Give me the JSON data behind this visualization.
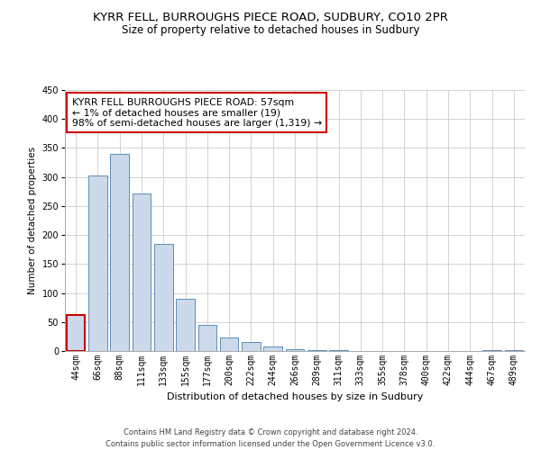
{
  "title": "KYRR FELL, BURROUGHS PIECE ROAD, SUDBURY, CO10 2PR",
  "subtitle": "Size of property relative to detached houses in Sudbury",
  "xlabel": "Distribution of detached houses by size in Sudbury",
  "ylabel": "Number of detached properties",
  "bar_labels": [
    "44sqm",
    "66sqm",
    "88sqm",
    "111sqm",
    "133sqm",
    "155sqm",
    "177sqm",
    "200sqm",
    "222sqm",
    "244sqm",
    "266sqm",
    "289sqm",
    "311sqm",
    "333sqm",
    "355sqm",
    "378sqm",
    "400sqm",
    "422sqm",
    "444sqm",
    "467sqm",
    "489sqm"
  ],
  "bar_values": [
    62,
    302,
    340,
    272,
    184,
    90,
    45,
    24,
    15,
    7,
    3,
    2,
    1,
    0,
    0,
    0,
    0,
    0,
    0,
    2,
    1
  ],
  "bar_color": "#ccd9ea",
  "bar_edge_color": "#5b8db8",
  "highlight_bar_index": 0,
  "highlight_bar_edge_color": "#cc0000",
  "ylim": [
    0,
    450
  ],
  "yticks": [
    0,
    50,
    100,
    150,
    200,
    250,
    300,
    350,
    400,
    450
  ],
  "annotation_line1": "KYRR FELL BURROUGHS PIECE ROAD: 57sqm",
  "annotation_line2": "← 1% of detached houses are smaller (19)",
  "annotation_line3": "98% of semi-detached houses are larger (1,319) →",
  "annotation_box_color": "#ffffff",
  "annotation_box_edge_color": "#cc0000",
  "footer_line1": "Contains HM Land Registry data © Crown copyright and database right 2024.",
  "footer_line2": "Contains public sector information licensed under the Open Government Licence v3.0.",
  "bg_color": "#ffffff",
  "grid_color": "#cccccc",
  "title_fontsize": 9.5,
  "subtitle_fontsize": 8.5,
  "annotation_fontsize": 7.8,
  "ylabel_fontsize": 7.5,
  "xlabel_fontsize": 8,
  "tick_fontsize": 7,
  "footer_fontsize": 6
}
